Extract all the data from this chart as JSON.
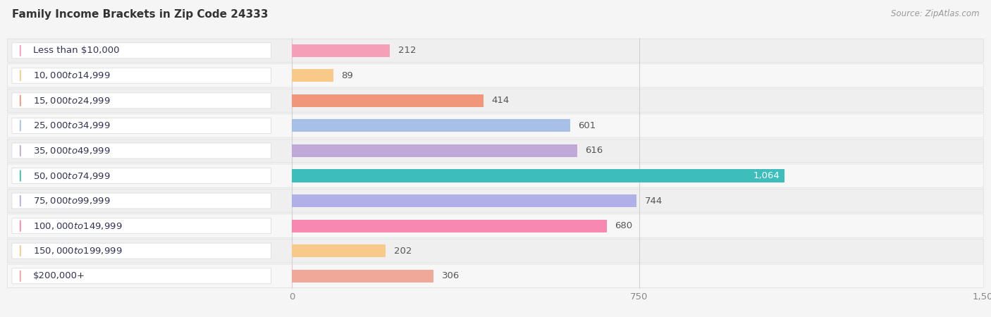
{
  "title": "Family Income Brackets in Zip Code 24333",
  "source": "Source: ZipAtlas.com",
  "categories": [
    "Less than $10,000",
    "$10,000 to $14,999",
    "$15,000 to $24,999",
    "$25,000 to $34,999",
    "$35,000 to $49,999",
    "$50,000 to $74,999",
    "$75,000 to $99,999",
    "$100,000 to $149,999",
    "$150,000 to $199,999",
    "$200,000+"
  ],
  "values": [
    212,
    89,
    414,
    601,
    616,
    1064,
    744,
    680,
    202,
    306
  ],
  "bar_colors": [
    "#f5a0b8",
    "#f9c98a",
    "#f0967a",
    "#a8c0e8",
    "#c0a8d8",
    "#3dbdbb",
    "#b0b0e8",
    "#f888b0",
    "#f9c98a",
    "#f0a898"
  ],
  "xlim_left": -620,
  "xlim_right": 1500,
  "xticks": [
    0,
    750,
    1500
  ],
  "bar_height": 0.68,
  "row_bg_light": "#f0f0f0",
  "row_bg_dark": "#e8e8e8",
  "background_color": "#f5f5f5",
  "title_fontsize": 11,
  "source_fontsize": 8.5,
  "label_fontsize": 9.5,
  "value_fontsize": 9.5,
  "title_color": "#333333",
  "label_text_color": "#333355",
  "value_color_default": "#555555",
  "value_color_inside": "#ffffff",
  "grid_color": "#d0d0d0",
  "tick_color": "#888888"
}
